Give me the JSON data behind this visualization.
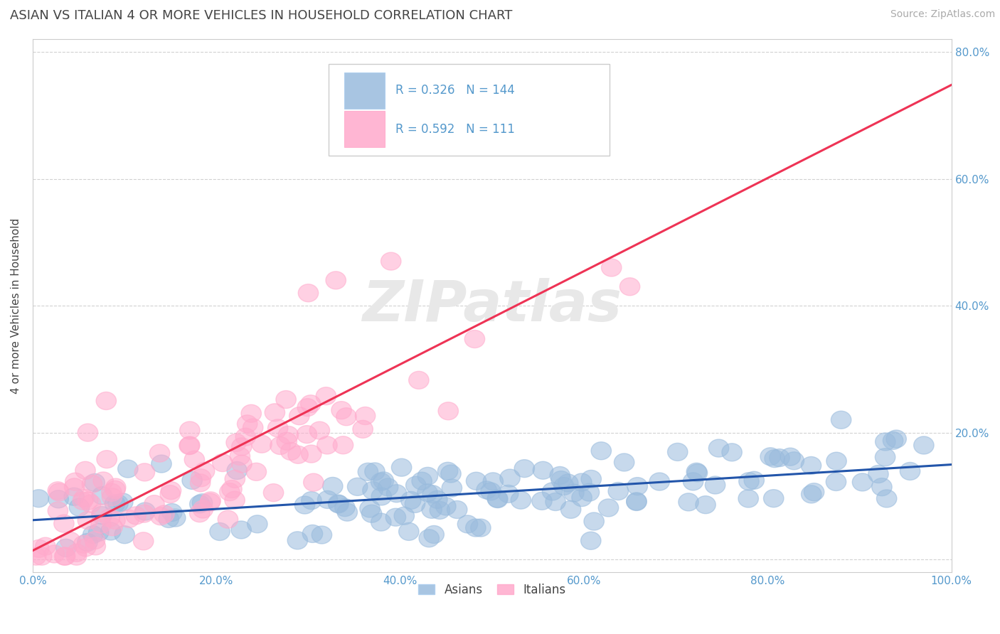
{
  "title": "ASIAN VS ITALIAN 4 OR MORE VEHICLES IN HOUSEHOLD CORRELATION CHART",
  "source": "Source: ZipAtlas.com",
  "ylabel": "4 or more Vehicles in Household",
  "r_asian": 0.326,
  "n_asian": 144,
  "r_italian": 0.592,
  "n_italian": 111,
  "color_asian": "#99BBDD",
  "color_italian": "#FFAACC",
  "color_asian_line": "#2255AA",
  "color_italian_line": "#EE3355",
  "title_color": "#444444",
  "axis_label_color": "#5599CC",
  "tick_color": "#5599CC",
  "watermark_color": "#E8E8E8",
  "background_color": "#FFFFFF",
  "grid_color": "#CCCCCC",
  "legend_border_color": "#CCCCCC",
  "xlim": [
    0.0,
    1.0
  ],
  "ylim": [
    -0.02,
    0.82
  ],
  "yticks": [
    0.0,
    0.2,
    0.4,
    0.6,
    0.8
  ],
  "ytick_labels": [
    "",
    "20.0%",
    "40.0%",
    "60.0%",
    "80.0%"
  ],
  "xtick_vals": [
    0.0,
    0.2,
    0.4,
    0.6,
    0.8,
    1.0
  ],
  "xtick_labels": [
    "0.0%",
    "20.0%",
    "40.0%",
    "60.0%",
    "80.0%",
    "100.0%"
  ]
}
